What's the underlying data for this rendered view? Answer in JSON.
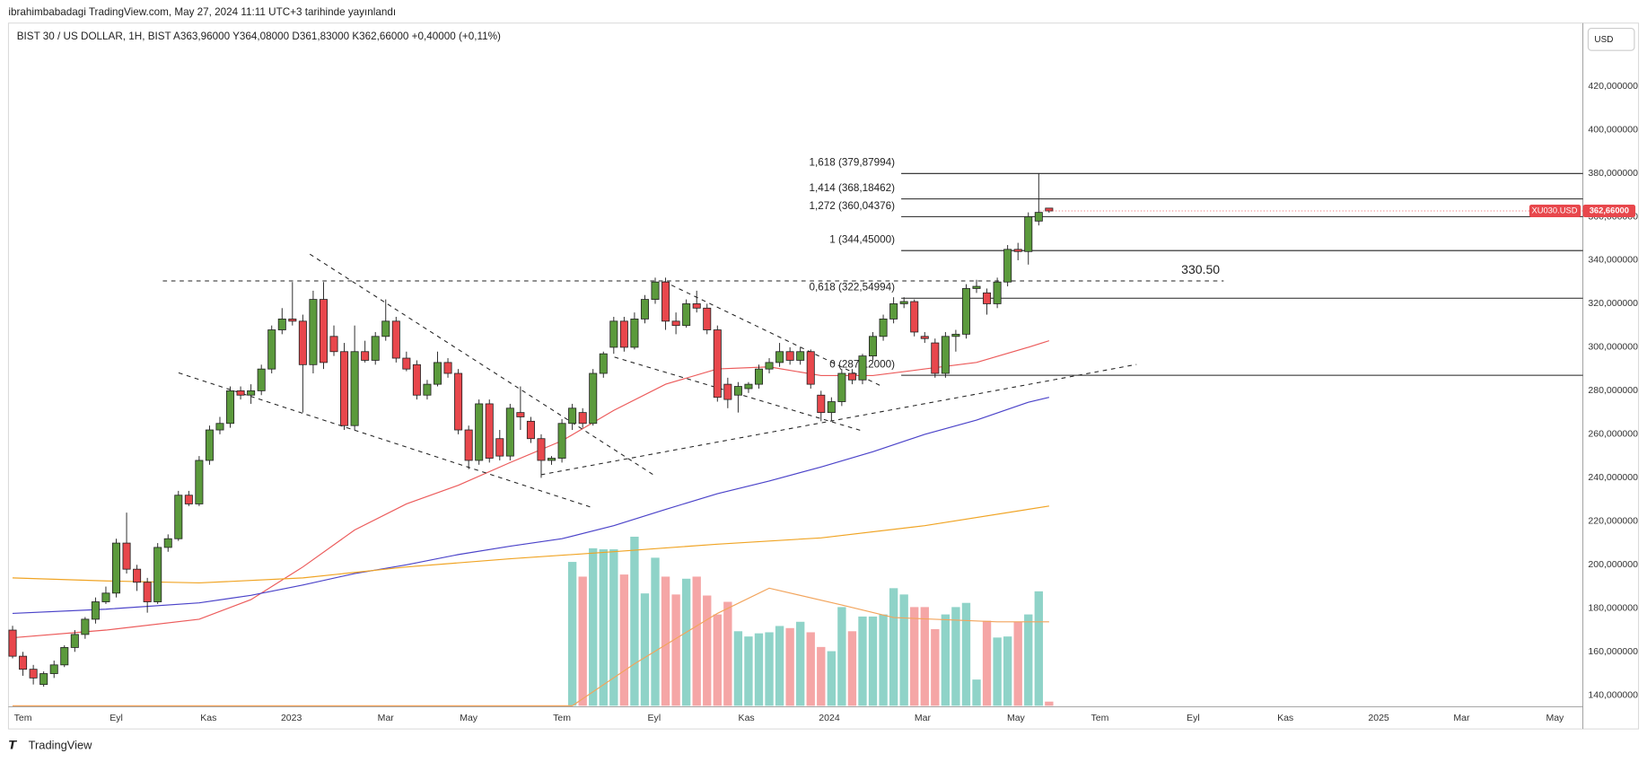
{
  "header": "ibrahimbabadagi TradingView.com, May 27, 2024 11:11 UTC+3 tarihinde yayınlandı",
  "currency": "USD",
  "footer": "TradingView",
  "chart_data": {
    "type": "candlestick",
    "title": "BIST 30 / US DOLLAR, 1H, BIST  A363,96000  Y364,08000  D361,83000  K362,66000  +0,40000 (+0,11%)",
    "open": [
      170,
      158,
      152,
      145,
      150,
      154,
      162,
      168,
      175,
      183,
      187,
      210,
      198,
      192,
      183,
      208,
      212,
      232,
      228,
      248,
      262,
      265,
      280,
      278,
      280,
      290,
      308,
      313,
      312,
      292,
      322,
      305,
      298,
      264,
      298,
      294,
      305,
      312,
      295,
      292,
      278,
      283,
      293,
      288,
      262,
      248,
      274,
      258,
      250,
      270,
      266,
      258,
      248,
      249,
      265,
      270,
      265,
      288,
      300,
      312,
      300,
      313,
      322,
      330,
      312,
      310,
      320,
      318,
      308,
      283,
      278,
      281,
      283,
      290,
      293,
      298,
      294,
      298,
      278,
      270,
      275,
      288,
      285,
      296,
      305,
      313,
      320,
      321,
      305,
      302,
      288,
      305,
      306,
      327,
      325,
      320,
      330,
      345,
      344,
      358,
      363.96
    ],
    "high": [
      172,
      160,
      154,
      151,
      156,
      163,
      170,
      176,
      185,
      190,
      212,
      224,
      200,
      194,
      210,
      214,
      234,
      234,
      250,
      264,
      268,
      282,
      282,
      283,
      292,
      310,
      318,
      330,
      315,
      326,
      330,
      310,
      302,
      310,
      303,
      307,
      322,
      314,
      298,
      294,
      285,
      298,
      295,
      290,
      264,
      276,
      276,
      262,
      274,
      282,
      268,
      260,
      250,
      267,
      274,
      272,
      290,
      298,
      314,
      314,
      316,
      324,
      332,
      332,
      316,
      322,
      326,
      320,
      310,
      286,
      284,
      284,
      292,
      295,
      302,
      300,
      300,
      299,
      280,
      277,
      290,
      290,
      297,
      307,
      315,
      323,
      323,
      322,
      307,
      304,
      307,
      308,
      329,
      331,
      327,
      332,
      347,
      348,
      362,
      380,
      364.08
    ],
    "low": [
      157,
      149,
      145,
      144,
      148,
      153,
      160,
      166,
      173,
      182,
      185,
      196,
      188,
      178,
      182,
      206,
      211,
      227,
      227,
      246,
      260,
      263,
      276,
      274,
      278,
      288,
      306,
      310,
      270,
      288,
      290,
      296,
      262,
      262,
      293,
      292,
      303,
      293,
      289,
      276,
      276,
      282,
      286,
      260,
      244,
      246,
      247,
      248,
      248,
      262,
      256,
      240,
      246,
      247,
      262,
      263,
      264,
      286,
      297,
      298,
      299,
      311,
      320,
      308,
      306,
      309,
      316,
      306,
      275,
      272,
      270,
      279,
      281,
      288,
      291,
      292,
      292,
      281,
      266,
      266,
      273,
      283,
      283,
      294,
      303,
      311,
      318,
      305,
      302,
      286,
      286,
      298,
      304,
      325,
      315,
      318,
      328,
      340,
      338,
      356,
      361.83
    ],
    "close": [
      158,
      152,
      148,
      150,
      154,
      162,
      168,
      175,
      183,
      187,
      210,
      198,
      192,
      183,
      208,
      212,
      232,
      228,
      248,
      262,
      265,
      280,
      278,
      280,
      290,
      308,
      313,
      312,
      292,
      322,
      293,
      298,
      264,
      298,
      294,
      305,
      312,
      295,
      290,
      278,
      283,
      293,
      288,
      262,
      248,
      274,
      249,
      250,
      272,
      268,
      258,
      248,
      249,
      265,
      272,
      265,
      288,
      297,
      312,
      300,
      313,
      322,
      330,
      312,
      310,
      320,
      318,
      308,
      277,
      276,
      282,
      283,
      290,
      293,
      298,
      294,
      298,
      283,
      270,
      275,
      288,
      285,
      296,
      305,
      313,
      320,
      321,
      307,
      304,
      288,
      305,
      306,
      327,
      328,
      320,
      330,
      345,
      344,
      360,
      362,
      362.66
    ],
    "volume": [
      null,
      null,
      null,
      null,
      null,
      null,
      null,
      null,
      null,
      null,
      null,
      null,
      null,
      null,
      null,
      null,
      null,
      null,
      null,
      null,
      null,
      null,
      null,
      null,
      null,
      null,
      null,
      null,
      null,
      null,
      null,
      null,
      null,
      null,
      null,
      null,
      null,
      null,
      null,
      null,
      null,
      null,
      null,
      null,
      null,
      null,
      null,
      null,
      null,
      null,
      null,
      null,
      null,
      null,
      137,
      123,
      150,
      149,
      149,
      125,
      161,
      107,
      141,
      123,
      106,
      121,
      123,
      105,
      87,
      99,
      71,
      66,
      69,
      70,
      76,
      74,
      80,
      70,
      56,
      52,
      94,
      71,
      85,
      85,
      87,
      112,
      106,
      94,
      94,
      73,
      87,
      94,
      98,
      25,
      81,
      65,
      66,
      80,
      87,
      109,
      4
    ],
    "volume_lim": [
      0,
      650
    ],
    "up_color": "#5b9a3c",
    "down_color": "#e8474c",
    "volume_up_color": "#8fd3c8",
    "volume_down_color": "#f5a6a6",
    "series": [
      {
        "color": "#ec5b5b",
        "x": [
          0,
          9,
          18,
          23,
          28,
          33,
          38,
          43,
          48,
          53,
          58,
          63,
          68,
          73,
          78,
          83,
          88,
          93,
          98,
          100
        ],
        "values": [
          166.5,
          170,
          175,
          184,
          199,
          216,
          228,
          236.6,
          247,
          257,
          271,
          283,
          290,
          291,
          287,
          287,
          290,
          293,
          300,
          303
        ]
      },
      {
        "color": "#4b43c9",
        "x": [
          0,
          9,
          18,
          23,
          28,
          33,
          38,
          43,
          48,
          53,
          58,
          63,
          68,
          73,
          78,
          83,
          88,
          93,
          98,
          100
        ],
        "values": [
          177.7,
          179.6,
          182.5,
          186,
          190.7,
          196,
          200,
          204.7,
          208.6,
          212,
          218,
          225.5,
          232.7,
          238.5,
          245,
          252,
          260,
          266.5,
          274.7,
          277
        ]
      },
      {
        "color": "#f0a424",
        "x": [
          0,
          9,
          18,
          28,
          38,
          48,
          58,
          68,
          78,
          88,
          100
        ],
        "values": [
          194,
          192.6,
          191.7,
          194,
          199,
          202.8,
          206,
          209.5,
          212.4,
          218,
          227
        ]
      }
    ],
    "volume_ma": {
      "color": "#f2a45c",
      "x": [
        0,
        54,
        60,
        68,
        73,
        80,
        85,
        90,
        95,
        100
      ],
      "values": [
        0,
        0,
        40,
        88,
        112,
        96,
        84,
        82,
        80,
        80
      ]
    },
    "fib_levels": [
      {
        "label": "1,618 (379,87994)",
        "value": 379.87994
      },
      {
        "label": "1,414 (368,18462)",
        "value": 368.18462
      },
      {
        "label": "1,272 (360,04376)",
        "value": 360.04376
      },
      {
        "label": "1 (344,45000)",
        "value": 344.45
      },
      {
        "label": "0,618 (322,54994)",
        "value": 322.54994
      },
      {
        "label": "0 (287,12000)",
        "value": 287.12
      }
    ],
    "level_line": {
      "label": "330.50",
      "value": 330.5
    },
    "symbol_tag": "XU030.USD",
    "last_price": {
      "value": 362.66,
      "label": "362,66000"
    },
    "xlim": [
      -0.4,
      151.5
    ],
    "xticks": [
      {
        "value": 1.0,
        "label": "Tem"
      },
      {
        "value": 10.0,
        "label": "Eyl"
      },
      {
        "value": 18.9,
        "label": "Kas"
      },
      {
        "value": 26.9,
        "label": "2023"
      },
      {
        "value": 36.0,
        "label": "Mar"
      },
      {
        "value": 44.0,
        "label": "May"
      },
      {
        "value": 53.0,
        "label": "Tem"
      },
      {
        "value": 61.9,
        "label": "Eyl"
      },
      {
        "value": 70.8,
        "label": "Kas"
      },
      {
        "value": 78.8,
        "label": "2024"
      },
      {
        "value": 87.8,
        "label": "Mar"
      },
      {
        "value": 96.8,
        "label": "May"
      },
      {
        "value": 104.9,
        "label": "Tem"
      },
      {
        "value": 113.9,
        "label": "Eyl"
      },
      {
        "value": 122.8,
        "label": "Kas"
      },
      {
        "value": 131.8,
        "label": "2025"
      },
      {
        "value": 139.8,
        "label": "Mar"
      },
      {
        "value": 148.8,
        "label": "May"
      }
    ],
    "ylim": [
      135.2,
      449.0
    ],
    "yticks": [
      {
        "value": 140,
        "label": "140,000000"
      },
      {
        "value": 160,
        "label": "160,000000"
      },
      {
        "value": 180,
        "label": "180,000000"
      },
      {
        "value": 200,
        "label": "200,000000"
      },
      {
        "value": 220,
        "label": "220,000000"
      },
      {
        "value": 240,
        "label": "240,000000"
      },
      {
        "value": 260,
        "label": "260,000000"
      },
      {
        "value": 280,
        "label": "280,000000"
      },
      {
        "value": 300,
        "label": "300,000000"
      },
      {
        "value": 320,
        "label": "320,000000"
      },
      {
        "value": 340,
        "label": "340,000000"
      },
      {
        "value": 360,
        "label": "360,000000"
      },
      {
        "value": 380,
        "label": "380,000000"
      },
      {
        "value": 400,
        "label": "400,000000"
      },
      {
        "value": 420,
        "label": "420,000000"
      }
    ],
    "grid": false
  }
}
